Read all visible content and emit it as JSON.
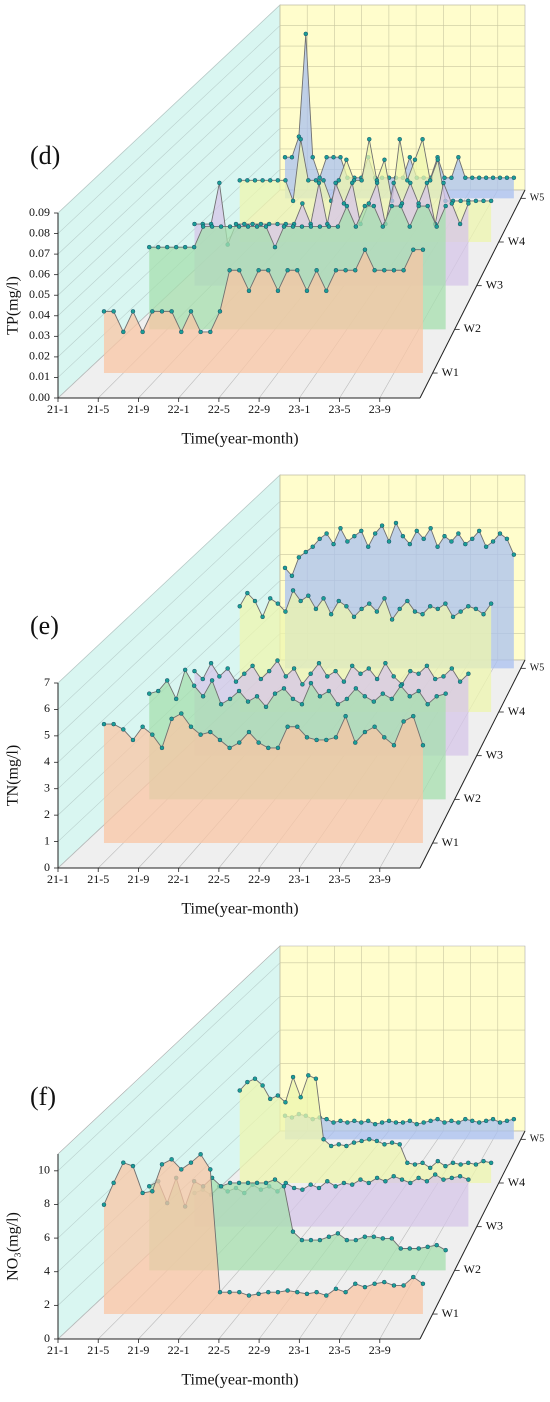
{
  "chart_data": [
    {
      "type": "waterfall3d",
      "panel_label": "(d)",
      "ylabel": "TP(mg/l)",
      "xlabel": "Time(year-month)",
      "categories": [
        "21-1",
        null,
        null,
        null,
        "21-5",
        null,
        null,
        null,
        "21-9",
        null,
        null,
        null,
        "22-1",
        null,
        null,
        null,
        "22-5",
        null,
        null,
        null,
        "22-9",
        null,
        null,
        null,
        "23-1",
        null,
        null,
        null,
        "23-5",
        null,
        null,
        null,
        "23-9",
        null,
        null,
        null
      ],
      "ylim": [
        0,
        0.09
      ],
      "yticks": [
        {
          "value": 0,
          "label": "0.00"
        },
        {
          "value": 0.01,
          "label": "0.01"
        },
        {
          "value": 0.02,
          "label": "0.02"
        },
        {
          "value": 0.03,
          "label": "0.03"
        },
        {
          "value": 0.04,
          "label": "0.04"
        },
        {
          "value": 0.05,
          "label": "0.05"
        },
        {
          "value": 0.06,
          "label": "0.06"
        },
        {
          "value": 0.07,
          "label": "0.07"
        },
        {
          "value": 0.08,
          "label": "0.08"
        },
        {
          "value": 0.09,
          "label": "0.09"
        }
      ],
      "grid": true,
      "line_color": "#707070",
      "marker_color": "#1b9e96",
      "series": [
        {
          "name": "W1",
          "color": "#f9c6a4",
          "values": [
            null,
            null,
            0.03,
            0.03,
            0.02,
            0.03,
            0.02,
            0.03,
            0.03,
            0.03,
            0.02,
            0.03,
            0.02,
            0.02,
            0.03,
            0.05,
            0.05,
            0.04,
            0.05,
            0.05,
            0.04,
            0.05,
            0.05,
            0.04,
            0.05,
            0.04,
            0.05,
            0.05,
            0.05,
            0.06,
            0.05,
            0.05,
            0.05,
            0.05,
            0.06,
            0.06
          ]
        },
        {
          "name": "W2",
          "color": "#a6dfae",
          "values": [
            null,
            null,
            0.04,
            0.04,
            0.04,
            0.04,
            0.04,
            0.04,
            0.05,
            0.05,
            0.05,
            0.05,
            0.05,
            0.05,
            0.05,
            0.05,
            0.04,
            0.05,
            0.05,
            0.05,
            0.05,
            0.05,
            0.05,
            0.05,
            0.06,
            0.05,
            0.06,
            0.06,
            0.05,
            0.06,
            0.06,
            0.05,
            0.06,
            0.06,
            0.05,
            0.06
          ]
        },
        {
          "name": "W3",
          "color": "#d6c6e8",
          "values": [
            null,
            null,
            0.03,
            0.03,
            0.03,
            0.05,
            0.02,
            0.03,
            0.03,
            0.03,
            0.03,
            0.03,
            0.03,
            0.03,
            0.03,
            0.04,
            0.03,
            0.05,
            0.03,
            0.05,
            0.04,
            0.05,
            0.03,
            0.04,
            0.05,
            0.03,
            0.05,
            0.04,
            0.05,
            0.04,
            0.05,
            0.03,
            0.05,
            0.04,
            0.03,
            0.04
          ]
        },
        {
          "name": "W4",
          "color": "#eef5ae",
          "values": [
            null,
            null,
            0.03,
            0.03,
            0.03,
            0.03,
            0.03,
            0.03,
            0.03,
            0.02,
            0.05,
            0.03,
            0.03,
            0.03,
            0.02,
            0.03,
            0.04,
            0.03,
            0.03,
            0.05,
            0.03,
            0.04,
            0.02,
            0.05,
            0.03,
            0.04,
            0.05,
            0.03,
            0.04,
            0.02,
            0.02,
            0.02,
            0.02,
            0.02,
            0.02,
            0.02
          ]
        },
        {
          "name": "W5",
          "color": "#a9c0f0",
          "values": [
            null,
            null,
            0.02,
            0.02,
            0.03,
            0.08,
            0.02,
            0.01,
            0.02,
            0.02,
            0.02,
            0.01,
            0.01,
            0.01,
            0.02,
            0.01,
            0.01,
            0.01,
            0.01,
            0.01,
            0.02,
            0.01,
            0.01,
            0.01,
            0.02,
            0.01,
            0.01,
            0.02,
            0.01,
            0.01,
            0.01,
            0.01,
            0.01,
            0.01,
            0.01,
            0.01
          ]
        }
      ]
    },
    {
      "type": "waterfall3d",
      "panel_label": "(e)",
      "ylabel": "TN(mg/l)",
      "xlabel": "Time(year-month)",
      "categories": [
        "21-1",
        null,
        null,
        null,
        "21-5",
        null,
        null,
        null,
        "21-9",
        null,
        null,
        null,
        "22-1",
        null,
        null,
        null,
        "22-5",
        null,
        null,
        null,
        "22-9",
        null,
        null,
        null,
        "23-1",
        null,
        null,
        null,
        "23-5",
        null,
        null,
        null,
        "23-9",
        null,
        null,
        null
      ],
      "ylim": [
        0,
        7
      ],
      "yticks": [
        0,
        1,
        2,
        3,
        4,
        5,
        6,
        7
      ],
      "grid": true,
      "line_color": "#707070",
      "marker_color": "#1b9e96",
      "series": [
        {
          "name": "W1",
          "color": "#f9c6a4",
          "values": [
            null,
            null,
            4.5,
            4.5,
            4.3,
            3.9,
            4.4,
            4.1,
            3.6,
            4.7,
            4.9,
            4.4,
            4.1,
            4.2,
            3.9,
            3.6,
            3.8,
            4.2,
            3.8,
            3.6,
            3.6,
            4.4,
            4.4,
            4.0,
            3.9,
            3.9,
            4.0,
            4.8,
            3.8,
            4.2,
            4.4,
            4.0,
            3.7,
            4.6,
            4.8,
            3.7
          ]
        },
        {
          "name": "W2",
          "color": "#a6dfae",
          "values": [
            null,
            null,
            4.0,
            4.1,
            4.5,
            3.8,
            4.9,
            4.3,
            3.9,
            4.5,
            3.6,
            3.8,
            4.1,
            3.7,
            3.9,
            3.5,
            4.0,
            4.2,
            3.8,
            3.6,
            4.4,
            3.9,
            4.1,
            3.6,
            3.8,
            4.2,
            3.9,
            3.7,
            4.0,
            3.8,
            4.3,
            3.9,
            4.1,
            3.6,
            3.9,
            4.0
          ]
        },
        {
          "name": "W3",
          "color": "#d6c6e8",
          "values": [
            null,
            null,
            3.2,
            2.9,
            3.5,
            3.0,
            3.3,
            2.8,
            3.1,
            3.4,
            2.9,
            3.2,
            3.6,
            3.0,
            3.3,
            2.7,
            3.1,
            3.5,
            3.0,
            3.2,
            2.8,
            3.4,
            3.1,
            3.3,
            2.9,
            3.5,
            3.0,
            2.7,
            3.2,
            3.1,
            3.4,
            2.9,
            3.0,
            3.3,
            2.8,
            3.1
          ]
        },
        {
          "name": "W4",
          "color": "#eef5ae",
          "values": [
            null,
            null,
            4.0,
            4.5,
            4.2,
            3.6,
            4.3,
            4.1,
            3.8,
            4.6,
            4.2,
            4.4,
            3.9,
            4.3,
            3.7,
            4.2,
            4.0,
            3.6,
            3.9,
            4.1,
            3.8,
            4.3,
            3.5,
            3.9,
            4.2,
            3.8,
            3.7,
            4.0,
            3.9,
            4.1,
            3.6,
            3.8,
            4.0,
            3.9,
            3.7,
            4.1
          ]
        },
        {
          "name": "W5",
          "color": "#a9c0f0",
          "values": [
            null,
            null,
            3.8,
            3.5,
            4.2,
            4.4,
            4.6,
            4.9,
            5.1,
            4.7,
            5.3,
            4.8,
            5.0,
            5.2,
            4.6,
            5.1,
            5.4,
            4.8,
            5.5,
            5.0,
            4.7,
            5.2,
            4.9,
            5.3,
            4.6,
            5.0,
            4.8,
            5.1,
            4.7,
            4.9,
            5.2,
            4.6,
            4.8,
            5.1,
            4.9,
            4.3
          ]
        }
      ]
    },
    {
      "type": "waterfall3d",
      "panel_label": "(f)",
      "ylabel": "NO₃(mg/l)",
      "xlabel": "Time(year-month)",
      "categories": [
        "21-1",
        null,
        null,
        null,
        "21-5",
        null,
        null,
        null,
        "21-9",
        null,
        null,
        null,
        "22-1",
        null,
        null,
        null,
        "22-5",
        null,
        null,
        null,
        "22-9",
        null,
        null,
        null,
        "23-1",
        null,
        null,
        null,
        "23-5",
        null,
        null,
        null,
        "23-9",
        null,
        null,
        null
      ],
      "ylim": [
        0,
        11
      ],
      "yticks": [
        0,
        2,
        4,
        6,
        8,
        10
      ],
      "grid": true,
      "line_color": "#707070",
      "marker_color": "#1b9e96",
      "series": [
        {
          "name": "W1",
          "color": "#f9c6a4",
          "values": [
            null,
            null,
            6.5,
            7.8,
            9.0,
            8.8,
            7.2,
            7.3,
            8.9,
            9.2,
            8.6,
            9.0,
            9.5,
            8.6,
            1.3,
            1.3,
            1.3,
            1.1,
            1.2,
            1.3,
            1.3,
            1.4,
            1.3,
            1.2,
            1.3,
            1.1,
            1.5,
            1.3,
            1.8,
            1.6,
            1.8,
            1.9,
            1.7,
            1.7,
            2.2,
            1.8
          ]
        },
        {
          "name": "W2",
          "color": "#a6dfae",
          "values": [
            null,
            null,
            5.0,
            5.3,
            4.0,
            5.5,
            3.8,
            5.3,
            5.0,
            5.5,
            5.0,
            5.2,
            5.2,
            5.2,
            5.2,
            5.2,
            5.4,
            5.0,
            2.3,
            1.8,
            1.8,
            1.8,
            2.0,
            2.2,
            1.8,
            1.8,
            2.0,
            2.0,
            1.9,
            1.9,
            1.3,
            1.3,
            1.3,
            1.4,
            1.5,
            1.2
          ]
        },
        {
          "name": "W3",
          "color": "#d6c6e8",
          "values": [
            null,
            null,
            2.0,
            2.2,
            1.9,
            2.4,
            2.1,
            2.3,
            2.0,
            2.5,
            2.2,
            2.4,
            2.1,
            2.6,
            2.3,
            2.2,
            2.5,
            2.3,
            2.7,
            2.4,
            2.6,
            2.5,
            2.8,
            2.6,
            2.9,
            2.7,
            3.0,
            2.8,
            2.6,
            2.9,
            2.7,
            3.1,
            2.8,
            2.9,
            3.0,
            2.8
          ]
        },
        {
          "name": "W4",
          "color": "#eef5ae",
          "values": [
            null,
            null,
            5.5,
            6.0,
            6.2,
            5.8,
            5.0,
            5.2,
            4.8,
            6.3,
            5.1,
            6.4,
            6.2,
            2.6,
            2.2,
            2.3,
            2.2,
            2.4,
            2.5,
            2.6,
            2.5,
            2.3,
            2.4,
            2.3,
            1.2,
            1.1,
            1.2,
            0.9,
            1.3,
            1.0,
            1.2,
            1.1,
            1.2,
            1.1,
            1.3,
            1.2
          ]
        },
        {
          "name": "W5",
          "color": "#a9c0f0",
          "values": [
            null,
            null,
            1.4,
            1.3,
            1.5,
            1.4,
            1.2,
            1.3,
            1.2,
            1.0,
            1.1,
            1.0,
            1.1,
            1.0,
            1.1,
            0.9,
            1.0,
            1.1,
            1.0,
            1.0,
            1.1,
            0.9,
            1.0,
            1.1,
            1.2,
            1.0,
            1.1,
            1.0,
            1.2,
            1.1,
            1.0,
            1.1,
            1.2,
            1.0,
            1.1,
            1.2
          ]
        }
      ]
    }
  ]
}
